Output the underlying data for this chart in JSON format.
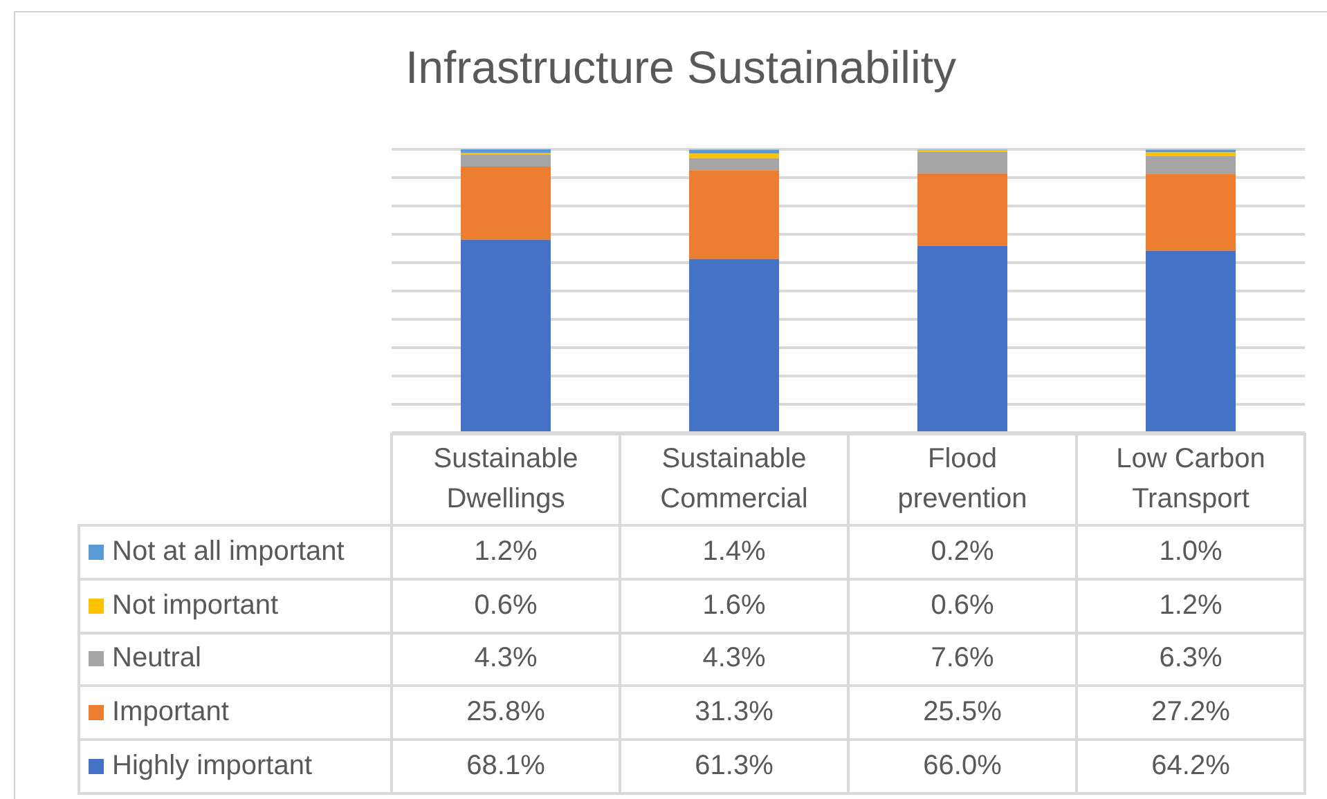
{
  "chart_data": {
    "type": "bar",
    "title": "Infrastructure Sustainability",
    "categories": [
      "Sustainable Dwellings",
      "Sustainable Commercial",
      "Flood prevention",
      "Low Carbon Transport"
    ],
    "stacked": true,
    "series": [
      {
        "name": "Highly important",
        "color": "#4472c4",
        "values": [
          68.1,
          61.3,
          66.0,
          64.2
        ],
        "value_labels": [
          "68.1%",
          "61.3%",
          "66.0%",
          "64.2%"
        ]
      },
      {
        "name": "Important",
        "color": "#ed7d31",
        "values": [
          25.8,
          31.3,
          25.5,
          27.2
        ],
        "value_labels": [
          "25.8%",
          "31.3%",
          "25.5%",
          "27.2%"
        ]
      },
      {
        "name": "Neutral",
        "color": "#a5a5a5",
        "values": [
          4.3,
          4.3,
          7.6,
          6.3
        ],
        "value_labels": [
          "4.3%",
          "4.3%",
          "7.6%",
          "6.3%"
        ]
      },
      {
        "name": "Not important",
        "color": "#ffc000",
        "values": [
          0.6,
          1.6,
          0.6,
          1.2
        ],
        "value_labels": [
          "0.6%",
          "1.6%",
          "0.6%",
          "1.2%"
        ]
      },
      {
        "name": "Not at all important",
        "color": "#5b9bd5",
        "values": [
          1.2,
          1.4,
          0.2,
          1.0
        ],
        "value_labels": [
          "1.2%",
          "1.4%",
          "0.2%",
          "1.0%"
        ]
      }
    ],
    "ylim": [
      0,
      100
    ],
    "yticks": [
      {
        "value": 0,
        "label": null
      },
      {
        "value": 10,
        "label": null
      },
      {
        "value": 20,
        "label": null
      },
      {
        "value": 30,
        "label": null
      },
      {
        "value": 40,
        "label": null
      },
      {
        "value": 50,
        "label": null
      },
      {
        "value": 60,
        "label": null
      },
      {
        "value": 70,
        "label": null
      },
      {
        "value": 80,
        "label": null
      },
      {
        "value": 90,
        "label": null
      },
      {
        "value": 100,
        "label": null
      }
    ],
    "grid": "y",
    "legend": "bottom left",
    "tick_labels": "x"
  }
}
